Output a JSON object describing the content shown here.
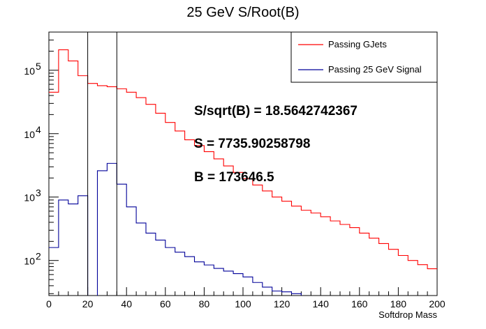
{
  "chart_data": {
    "type": "line",
    "title": "25 GeV S/Root(B)",
    "xlabel": "Softdrop Mass",
    "ylabel": "",
    "xlim": [
      0,
      200
    ],
    "ylim": [
      28,
      400000
    ],
    "yscale": "log",
    "bin_width": 5,
    "x_ticks": [
      0,
      20,
      40,
      60,
      80,
      100,
      120,
      140,
      160,
      180,
      200
    ],
    "y_ticks": [
      {
        "value": 100,
        "base": "10",
        "exp": "2"
      },
      {
        "value": 1000,
        "base": "10",
        "exp": "3"
      },
      {
        "value": 10000,
        "base": "10",
        "exp": "4"
      },
      {
        "value": 100000,
        "base": "10",
        "exp": "5"
      }
    ],
    "cut_lines": [
      20,
      35
    ],
    "legend_position": "top-right",
    "series": [
      {
        "name": "Passing GJets",
        "color": "#ff0000",
        "bin_edges_start": 0,
        "values": [
          45000,
          210000,
          140000,
          82000,
          62000,
          57000,
          55000,
          51000,
          45000,
          37000,
          29000,
          21000,
          15000,
          11000,
          8000,
          6500,
          5200,
          4000,
          3100,
          2450,
          1950,
          1550,
          1250,
          1000,
          860,
          720,
          620,
          560,
          490,
          420,
          370,
          330,
          270,
          225,
          185,
          150,
          120,
          100,
          86,
          74
        ]
      },
      {
        "name": "Passing 25 GeV Signal",
        "color": "#000099",
        "bin_edges_start": 0,
        "values": [
          160,
          900,
          780,
          1050,
          null,
          2600,
          3400,
          1600,
          700,
          390,
          270,
          210,
          160,
          135,
          115,
          95,
          85,
          75,
          68,
          62,
          55,
          45,
          38,
          33,
          32,
          30,
          null
        ]
      }
    ],
    "annotations": [
      "S/sqrt(B) = 18.5642742367",
      "S = 7735.90258798",
      "B = 173646.5"
    ]
  },
  "icons": {
    "legend_line": "legend-line-icon"
  }
}
